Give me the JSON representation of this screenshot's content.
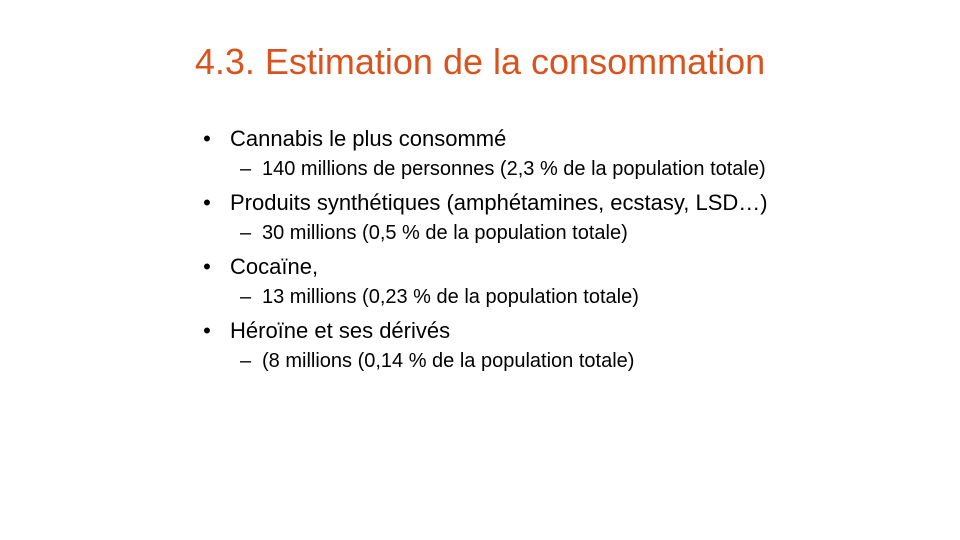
{
  "slide": {
    "title": "4.3. Estimation de la consommation",
    "title_color": "#d9531e",
    "bullet_symbol": "•",
    "sub_symbol": "–",
    "items": [
      {
        "text": "Cannabis le plus consommé",
        "sub": "140 millions  de personnes (2,3 % de la population totale)"
      },
      {
        "text": "Produits synthétiques (amphétamines, ecstasy, LSD…)",
        "sub": "30 millions  (0,5 % de la population  totale)"
      },
      {
        "text": "Cocaïne,",
        "sub": "13 millions  (0,23 % de la population  totale)"
      },
      {
        "text": "Héroïne et ses dérivés",
        "sub": "(8 millions  (0,14 % de la population  totale)"
      }
    ]
  }
}
